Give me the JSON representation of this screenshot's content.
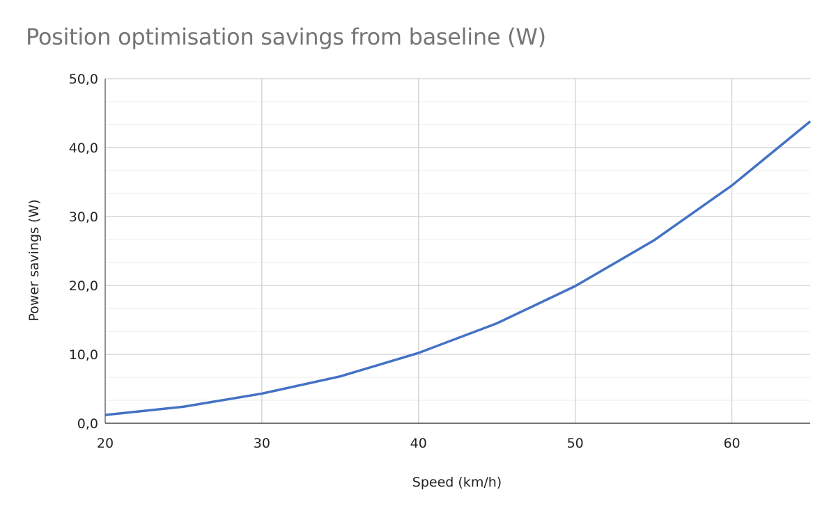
{
  "chart_data": {
    "type": "line",
    "title": "Position optimisation savings from baseline (W)",
    "xlabel": "Speed (km/h)",
    "ylabel": "Power savings (W)",
    "xlim": [
      20,
      65
    ],
    "ylim": [
      0,
      50
    ],
    "x_ticks": [
      20,
      30,
      40,
      50,
      60
    ],
    "x_tick_labels": [
      "20",
      "30",
      "40",
      "50",
      "60"
    ],
    "y_ticks": [
      0,
      10,
      20,
      30,
      40,
      50
    ],
    "y_tick_labels": [
      "0,0",
      "10,0",
      "20,0",
      "30,0",
      "40,0",
      "50,0"
    ],
    "x_minor_step": 5,
    "y_minor_step": 3.333,
    "grid": true,
    "series": [
      {
        "name": "Power savings",
        "color": "#4472c4",
        "x": [
          20,
          25,
          30,
          35,
          40,
          45,
          50,
          55,
          60,
          65
        ],
        "y": [
          1.2,
          2.4,
          4.3,
          6.8,
          10.2,
          14.5,
          19.9,
          26.5,
          34.5,
          43.8
        ]
      }
    ]
  }
}
